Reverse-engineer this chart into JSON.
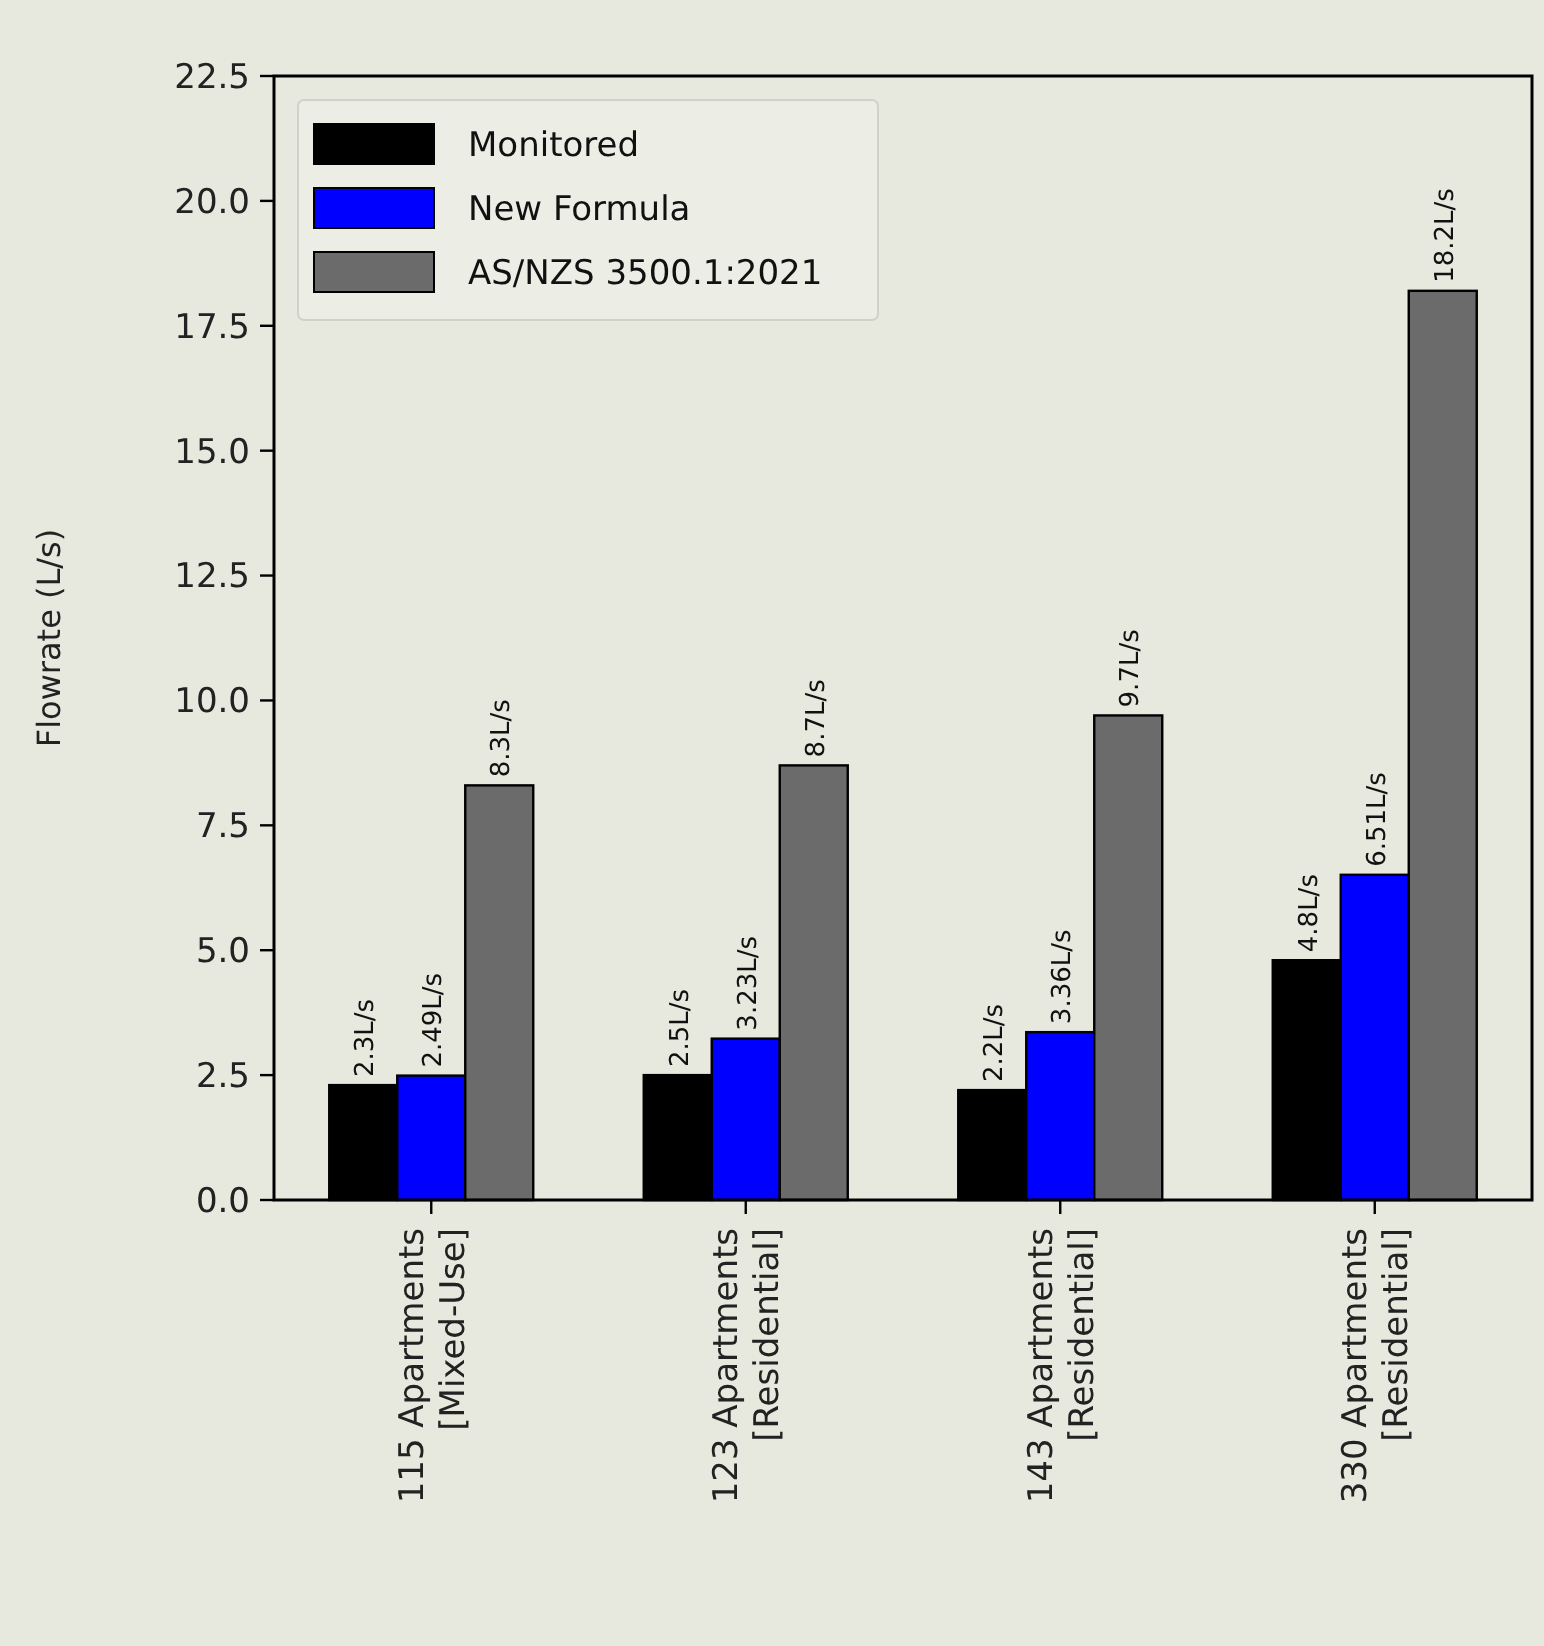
{
  "chart_data": {
    "type": "bar",
    "ylabel": "Flowrate (L/s)",
    "categories": [
      "115 Apartments\n[Mixed-Use]",
      "123 Apartments\n[Residential]",
      "143 Apartments\n[Residential]",
      "330 Apartments\n[Residential]"
    ],
    "series": [
      {
        "name": "Monitored",
        "color": "#000000",
        "values": [
          2.3,
          2.5,
          2.2,
          4.8
        ],
        "value_labels": [
          "2.3L/s",
          "2.5L/s",
          "2.2L/s",
          "4.8L/s"
        ]
      },
      {
        "name": "New Formula",
        "color": "#0000ff",
        "values": [
          2.49,
          3.23,
          3.36,
          6.51
        ],
        "value_labels": [
          "2.49L/s",
          "3.23L/s",
          "3.36L/s",
          "6.51L/s"
        ]
      },
      {
        "name": "AS/NZS 3500.1:2021",
        "color": "#6b6b6b",
        "values": [
          8.3,
          8.7,
          9.7,
          18.2
        ],
        "value_labels": [
          "8.3L/s",
          "8.7L/s",
          "9.7L/s",
          "18.2L/s"
        ]
      }
    ],
    "ylim": [
      0,
      22.5
    ],
    "yticks": [
      {
        "value": 0,
        "label": "0.0"
      },
      {
        "value": 2.5,
        "label": "2.5"
      },
      {
        "value": 5,
        "label": "5.0"
      },
      {
        "value": 7.5,
        "label": "7.5"
      },
      {
        "value": 10,
        "label": "10.0"
      },
      {
        "value": 12.5,
        "label": "12.5"
      },
      {
        "value": 15,
        "label": "15.0"
      },
      {
        "value": 17.5,
        "label": "17.5"
      },
      {
        "value": 20,
        "label": "20.0"
      },
      {
        "value": 22.5,
        "label": "22.5"
      }
    ],
    "legend": "top left",
    "grid": false
  }
}
